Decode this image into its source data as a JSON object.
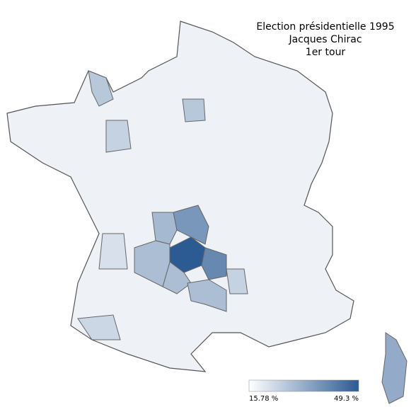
{
  "map_data": {
    "type": "choropleth",
    "title": [
      "Election présidentielle 1995",
      "Jacques Chirac",
      "1er tour"
    ],
    "legend": {
      "min": {
        "value": 15.78,
        "label": "15.78 %"
      },
      "max": {
        "value": 49.3,
        "label": "49.3 %"
      },
      "colors": [
        "#ffffff",
        "#2c5a93"
      ]
    },
    "region_values": [
      49.3,
      37,
      30,
      40,
      29,
      29,
      25,
      29,
      33,
      24,
      22,
      27,
      25,
      27
    ]
  }
}
